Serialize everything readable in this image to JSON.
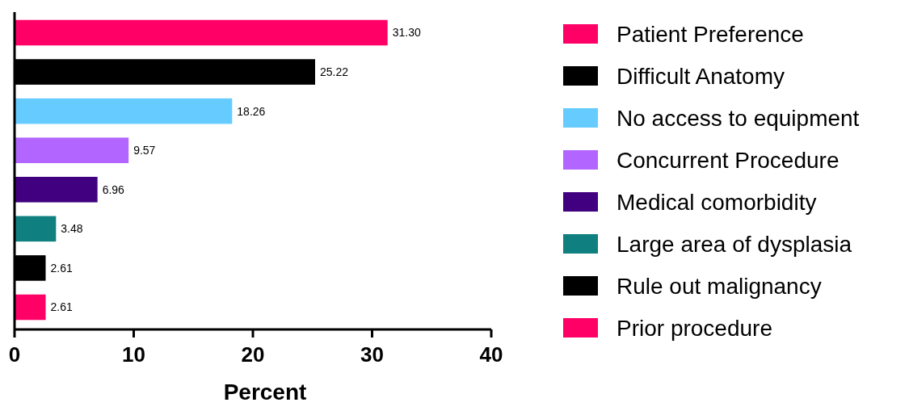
{
  "chart_data": {
    "type": "bar",
    "orientation": "horizontal",
    "stacked": true,
    "xlabel": "Percent",
    "categories": [
      null,
      null,
      null,
      null,
      null,
      null,
      null,
      null
    ],
    "series": [
      {
        "name": "Patient Preference",
        "color": "#ff0066",
        "values": [
          31.3,
          null,
          null,
          null,
          null,
          null,
          null,
          null
        ],
        "value_labels": [
          "31.30",
          null,
          null,
          null,
          null,
          null,
          null,
          null
        ]
      },
      {
        "name": "Difficult Anatomy",
        "color": "#000000",
        "values": [
          null,
          25.22,
          null,
          null,
          null,
          null,
          null,
          null
        ],
        "value_labels": [
          null,
          "25.22",
          null,
          null,
          null,
          null,
          null,
          null
        ]
      },
      {
        "name": "No access to equipment",
        "color": "#66ccff",
        "values": [
          null,
          null,
          18.26,
          null,
          null,
          null,
          null,
          null
        ],
        "value_labels": [
          null,
          null,
          "18.26",
          null,
          null,
          null,
          null,
          null
        ]
      },
      {
        "name": "Concurrent Procedure",
        "color": "#b266ff",
        "values": [
          null,
          null,
          null,
          9.57,
          null,
          null,
          null,
          null
        ],
        "value_labels": [
          null,
          null,
          null,
          "9.57",
          null,
          null,
          null,
          null
        ]
      },
      {
        "name": "Medical comorbidity",
        "color": "#400080",
        "values": [
          null,
          null,
          null,
          null,
          6.96,
          null,
          null,
          null
        ],
        "value_labels": [
          null,
          null,
          null,
          null,
          "6.96",
          null,
          null,
          null
        ]
      },
      {
        "name": "Large area of dysplasia",
        "color": "#0f7f7f",
        "values": [
          null,
          null,
          null,
          null,
          null,
          3.48,
          null,
          null
        ],
        "value_labels": [
          null,
          null,
          null,
          null,
          null,
          "3.48",
          null,
          null
        ]
      },
      {
        "name": "Rule out malignancy",
        "color": "#000000",
        "values": [
          null,
          null,
          null,
          null,
          null,
          null,
          2.61,
          null
        ],
        "value_labels": [
          null,
          null,
          null,
          null,
          null,
          null,
          "2.61",
          null
        ]
      },
      {
        "name": "Prior procedure",
        "color": "#ff0066",
        "values": [
          null,
          null,
          null,
          null,
          null,
          null,
          null,
          2.61
        ],
        "value_labels": [
          null,
          null,
          null,
          null,
          null,
          null,
          null,
          "2.61"
        ]
      }
    ],
    "xlim": [
      0,
      40
    ],
    "xticks": [
      0,
      10,
      20,
      30,
      40
    ],
    "legend": "right",
    "tick_labels": "x"
  }
}
